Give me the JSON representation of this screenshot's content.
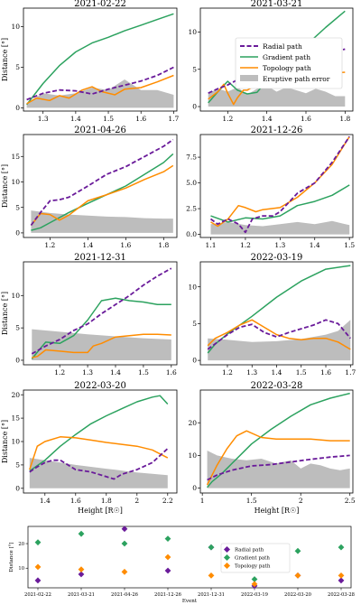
{
  "colors": {
    "radial": "#6a1b9a",
    "gradient": "#2ca25f",
    "topology": "#ff8c00",
    "error": "#bdbdbd"
  },
  "legend": [
    {
      "key": "radial",
      "label": "Radial path"
    },
    {
      "key": "gradient",
      "label": "Gradient path"
    },
    {
      "key": "topology",
      "label": "Topology path"
    },
    {
      "key": "error",
      "label": "Eruptive path error"
    }
  ],
  "bottom_legend": [
    {
      "key": "radial",
      "label": "Radial path"
    },
    {
      "key": "gradient",
      "label": "Gradient path"
    },
    {
      "key": "topology",
      "label": "Topology path"
    }
  ],
  "chart_data": [
    {
      "type": "line",
      "title": "2021-02-22",
      "xlabel": "",
      "ylabel": "Distance [°]",
      "xlim": [
        1.24,
        1.71
      ],
      "ylim": [
        -0.4,
        12.3
      ],
      "xticks": [
        1.3,
        1.4,
        1.5,
        1.6,
        1.7
      ],
      "yticks": [
        0,
        5,
        10
      ],
      "legend": false,
      "error": {
        "x": [
          1.25,
          1.3,
          1.35,
          1.4,
          1.45,
          1.5,
          1.55,
          1.6,
          1.65,
          1.7
        ],
        "y": [
          0.6,
          1.8,
          1.5,
          1.8,
          2.5,
          2.2,
          3.5,
          2.2,
          2.2,
          1.6
        ]
      },
      "radial": {
        "x": [
          1.25,
          1.3,
          1.35,
          1.4,
          1.45,
          1.5,
          1.55,
          1.6,
          1.65,
          1.7
        ],
        "y": [
          1.0,
          1.8,
          2.2,
          2.1,
          1.7,
          2.3,
          2.8,
          3.3,
          4.0,
          5.0
        ]
      },
      "gradient": {
        "x": [
          1.25,
          1.3,
          1.35,
          1.4,
          1.45,
          1.5,
          1.55,
          1.6,
          1.65,
          1.7
        ],
        "y": [
          0.4,
          3.0,
          5.2,
          6.9,
          8.0,
          8.7,
          9.5,
          10.2,
          10.9,
          11.6
        ]
      },
      "topology": {
        "x": [
          1.25,
          1.28,
          1.32,
          1.35,
          1.38,
          1.42,
          1.45,
          1.48,
          1.52,
          1.55,
          1.6,
          1.65,
          1.7
        ],
        "y": [
          0.5,
          1.2,
          0.9,
          1.5,
          1.2,
          2.2,
          2.6,
          2.0,
          1.6,
          2.3,
          2.5,
          3.2,
          4.0
        ]
      }
    },
    {
      "type": "line",
      "title": "2021-03-21",
      "xlabel": "",
      "ylabel": "",
      "xlim": [
        1.06,
        1.84
      ],
      "ylim": [
        -0.6,
        13.2
      ],
      "xticks": [
        1.2,
        1.4,
        1.6,
        1.8
      ],
      "yticks": [
        0,
        5,
        10
      ],
      "legend": true,
      "error": {
        "x": [
          1.1,
          1.15,
          1.2,
          1.25,
          1.3,
          1.35,
          1.4,
          1.45,
          1.5,
          1.55,
          1.6,
          1.65,
          1.7,
          1.75,
          1.8
        ],
        "y": [
          1.8,
          2.4,
          2.0,
          2.6,
          1.6,
          2.4,
          2.8,
          2.0,
          2.6,
          2.2,
          1.8,
          2.4,
          2.0,
          1.4,
          1.4
        ]
      },
      "radial": {
        "x": [
          1.1,
          1.15,
          1.2,
          1.25,
          1.3,
          1.35,
          1.4,
          1.5,
          1.6,
          1.7,
          1.8
        ],
        "y": [
          1.8,
          2.4,
          2.9,
          3.6,
          3.9,
          4.1,
          4.6,
          5.5,
          6.3,
          7.0,
          7.7
        ]
      },
      "gradient": {
        "x": [
          1.1,
          1.15,
          1.2,
          1.25,
          1.3,
          1.35,
          1.4,
          1.5,
          1.6,
          1.7,
          1.8
        ],
        "y": [
          0.5,
          2.0,
          3.4,
          2.2,
          1.7,
          1.9,
          3.5,
          5.8,
          8.2,
          10.6,
          12.8
        ]
      },
      "topology": {
        "x": [
          1.1,
          1.15,
          1.18,
          1.2,
          1.23,
          1.25,
          1.28,
          1.3,
          1.35,
          1.4,
          1.5,
          1.6,
          1.7,
          1.8
        ],
        "y": [
          1.0,
          2.0,
          3.0,
          1.8,
          0.3,
          1.2,
          2.2,
          2.2,
          3.0,
          5.0,
          4.5,
          4.4,
          4.4,
          4.6
        ]
      }
    },
    {
      "type": "line",
      "title": "2021-04-26",
      "xlabel": "",
      "ylabel": "Distance [°]",
      "xlim": [
        1.06,
        1.87
      ],
      "ylim": [
        -0.9,
        19.3
      ],
      "xticks": [
        1.2,
        1.4,
        1.6,
        1.8
      ],
      "yticks": [
        0,
        5,
        10,
        15
      ],
      "legend": false,
      "error": {
        "x": [
          1.1,
          1.2,
          1.3,
          1.4,
          1.5,
          1.6,
          1.7,
          1.8,
          1.85
        ],
        "y": [
          4.4,
          3.9,
          3.6,
          3.4,
          3.2,
          3.1,
          2.9,
          2.8,
          2.8
        ]
      },
      "radial": {
        "x": [
          1.1,
          1.15,
          1.2,
          1.25,
          1.3,
          1.4,
          1.5,
          1.6,
          1.7,
          1.8,
          1.85
        ],
        "y": [
          1.5,
          4.0,
          6.3,
          6.5,
          7.0,
          9.2,
          11.5,
          13.0,
          15.0,
          17.0,
          18.3
        ]
      },
      "gradient": {
        "x": [
          1.1,
          1.15,
          1.2,
          1.3,
          1.4,
          1.5,
          1.6,
          1.7,
          1.8,
          1.85
        ],
        "y": [
          0.5,
          1.0,
          2.0,
          4.0,
          5.8,
          7.5,
          9.2,
          11.5,
          13.8,
          15.5
        ]
      },
      "topology": {
        "x": [
          1.1,
          1.15,
          1.2,
          1.25,
          1.3,
          1.4,
          1.5,
          1.6,
          1.7,
          1.8,
          1.85
        ],
        "y": [
          1.5,
          3.8,
          3.6,
          2.5,
          3.5,
          6.3,
          7.5,
          8.8,
          10.5,
          12.0,
          13.2
        ]
      }
    },
    {
      "type": "line",
      "title": "2021-12-26",
      "xlabel": "",
      "ylabel": "",
      "xlim": [
        1.07,
        1.51
      ],
      "ylim": [
        -0.3,
        9.7
      ],
      "xticks": [
        1.1,
        1.2,
        1.3,
        1.4,
        1.5
      ],
      "yticks": [
        0.0,
        2.5,
        5.0,
        7.5
      ],
      "legend": false,
      "error": {
        "x": [
          1.1,
          1.15,
          1.2,
          1.25,
          1.3,
          1.35,
          1.4,
          1.45,
          1.5
        ],
        "y": [
          1.0,
          1.2,
          0.9,
          0.8,
          1.0,
          1.2,
          1.0,
          1.3,
          0.9
        ]
      },
      "radial": {
        "x": [
          1.1,
          1.12,
          1.15,
          1.18,
          1.2,
          1.22,
          1.25,
          1.28,
          1.3,
          1.35,
          1.4,
          1.45,
          1.5
        ],
        "y": [
          1.5,
          1.0,
          1.5,
          1.0,
          0.2,
          1.5,
          1.8,
          1.8,
          2.2,
          4.0,
          5.0,
          7.0,
          9.5
        ]
      },
      "gradient": {
        "x": [
          1.1,
          1.15,
          1.2,
          1.25,
          1.3,
          1.35,
          1.4,
          1.45,
          1.5
        ],
        "y": [
          1.8,
          1.2,
          1.6,
          1.5,
          1.8,
          2.8,
          3.2,
          3.8,
          4.8
        ]
      },
      "topology": {
        "x": [
          1.1,
          1.12,
          1.15,
          1.18,
          1.2,
          1.23,
          1.25,
          1.3,
          1.35,
          1.4,
          1.45,
          1.5
        ],
        "y": [
          1.2,
          0.8,
          1.5,
          2.8,
          2.6,
          2.2,
          2.4,
          2.6,
          3.6,
          5.0,
          6.8,
          9.5
        ]
      }
    },
    {
      "type": "line",
      "title": "2021-12-31",
      "xlabel": "",
      "ylabel": "Distance [°]",
      "xlim": [
        1.07,
        1.62
      ],
      "ylim": [
        -0.7,
        15.2
      ],
      "xticks": [
        1.2,
        1.3,
        1.4,
        1.5,
        1.6
      ],
      "yticks": [
        0,
        5,
        10
      ],
      "legend": false,
      "error": {
        "x": [
          1.1,
          1.2,
          1.3,
          1.4,
          1.5,
          1.6
        ],
        "y": [
          4.8,
          4.4,
          4.0,
          3.7,
          3.4,
          3.2
        ]
      },
      "radial": {
        "x": [
          1.1,
          1.15,
          1.2,
          1.25,
          1.3,
          1.35,
          1.4,
          1.45,
          1.5,
          1.55,
          1.6
        ],
        "y": [
          1.0,
          2.2,
          3.2,
          4.6,
          5.6,
          7.2,
          8.6,
          10.0,
          11.6,
          13.0,
          14.2
        ]
      },
      "gradient": {
        "x": [
          1.1,
          1.13,
          1.15,
          1.2,
          1.25,
          1.3,
          1.35,
          1.4,
          1.45,
          1.5,
          1.55,
          1.6
        ],
        "y": [
          0.2,
          1.8,
          2.8,
          2.6,
          3.8,
          6.2,
          9.2,
          9.6,
          9.2,
          9.0,
          8.6,
          8.6
        ]
      },
      "topology": {
        "x": [
          1.1,
          1.12,
          1.15,
          1.2,
          1.25,
          1.3,
          1.32,
          1.35,
          1.4,
          1.45,
          1.5,
          1.55,
          1.6
        ],
        "y": [
          0.4,
          0.6,
          1.6,
          1.4,
          1.2,
          1.2,
          2.2,
          2.6,
          3.6,
          3.8,
          4.0,
          4.0,
          3.9
        ]
      }
    },
    {
      "type": "line",
      "title": "2022-03-19",
      "xlabel": "",
      "ylabel": "",
      "xlim": [
        1.09,
        1.71
      ],
      "ylim": [
        -0.6,
        13.4
      ],
      "xticks": [
        1.2,
        1.3,
        1.4,
        1.5,
        1.6,
        1.7
      ],
      "yticks": [
        0,
        5,
        10
      ],
      "legend": false,
      "error": {
        "x": [
          1.12,
          1.2,
          1.3,
          1.4,
          1.5,
          1.6,
          1.65,
          1.7
        ],
        "y": [
          3.0,
          2.8,
          2.5,
          2.6,
          2.9,
          3.5,
          4.0,
          5.5
        ]
      },
      "radial": {
        "x": [
          1.12,
          1.2,
          1.25,
          1.3,
          1.35,
          1.4,
          1.45,
          1.5,
          1.55,
          1.6,
          1.65,
          1.7
        ],
        "y": [
          1.5,
          3.5,
          4.5,
          4.9,
          3.8,
          3.2,
          3.8,
          4.3,
          4.8,
          5.5,
          5.0,
          3.0
        ]
      },
      "gradient": {
        "x": [
          1.12,
          1.15,
          1.2,
          1.3,
          1.4,
          1.5,
          1.6,
          1.7
        ],
        "y": [
          1.0,
          2.2,
          3.6,
          6.0,
          8.6,
          10.8,
          12.4,
          12.9
        ]
      },
      "topology": {
        "x": [
          1.12,
          1.15,
          1.2,
          1.25,
          1.3,
          1.35,
          1.4,
          1.45,
          1.5,
          1.55,
          1.6,
          1.65,
          1.7
        ],
        "y": [
          2.0,
          3.0,
          3.8,
          4.8,
          5.5,
          4.5,
          3.5,
          3.0,
          2.8,
          3.0,
          3.0,
          2.5,
          1.5
        ]
      }
    },
    {
      "type": "line",
      "title": "2022-03-20",
      "xlabel": "Height [R☉]",
      "ylabel": "Distance [°]",
      "xlim": [
        1.26,
        2.26
      ],
      "ylim": [
        -1.0,
        21.0
      ],
      "xticks": [
        1.4,
        1.6,
        1.8,
        2.0,
        2.2
      ],
      "yticks": [
        0,
        5,
        10,
        15,
        20
      ],
      "legend": false,
      "error": {
        "x": [
          1.3,
          1.4,
          1.5,
          1.6,
          1.7,
          1.8,
          1.9,
          2.0,
          2.1,
          2.2
        ],
        "y": [
          6.5,
          6.0,
          5.5,
          5.0,
          4.6,
          4.2,
          3.8,
          3.4,
          3.1,
          2.8
        ]
      },
      "radial": {
        "x": [
          1.3,
          1.35,
          1.4,
          1.45,
          1.5,
          1.55,
          1.6,
          1.7,
          1.8,
          1.85,
          1.9,
          2.0,
          2.1,
          2.2
        ],
        "y": [
          3.5,
          4.6,
          5.5,
          6.0,
          6.0,
          5.0,
          4.0,
          3.5,
          2.5,
          2.0,
          3.0,
          4.0,
          5.5,
          8.5
        ]
      },
      "gradient": {
        "x": [
          1.3,
          1.4,
          1.5,
          1.6,
          1.7,
          1.8,
          1.9,
          2.0,
          2.1,
          2.15,
          2.2
        ],
        "y": [
          3.7,
          6.0,
          9.0,
          11.5,
          13.8,
          15.5,
          17.0,
          18.5,
          19.5,
          19.8,
          18.0
        ]
      },
      "topology": {
        "x": [
          1.3,
          1.35,
          1.4,
          1.5,
          1.6,
          1.7,
          1.8,
          1.9,
          2.0,
          2.1,
          2.2
        ],
        "y": [
          4.0,
          9.0,
          10.0,
          11.0,
          10.8,
          10.3,
          9.8,
          9.4,
          9.0,
          8.2,
          6.5
        ]
      }
    },
    {
      "type": "line",
      "title": "2022-03-28",
      "xlabel": "Height [R☉]",
      "ylabel": "",
      "xlim": [
        0.98,
        2.53
      ],
      "ylim": [
        -1.5,
        30.0
      ],
      "xticks": [
        1.0,
        1.5,
        2.0,
        2.5
      ],
      "yticks": [
        0,
        10,
        20
      ],
      "legend": false,
      "error": {
        "x": [
          1.05,
          1.15,
          1.3,
          1.45,
          1.6,
          1.75,
          1.9,
          2.0,
          2.1,
          2.2,
          2.3,
          2.4,
          2.5
        ],
        "y": [
          11.5,
          10.0,
          9.0,
          8.5,
          9.0,
          7.5,
          8.5,
          6.0,
          7.5,
          7.0,
          6.0,
          5.5,
          6.0
        ]
      },
      "radial": {
        "x": [
          1.05,
          1.15,
          1.3,
          1.5,
          1.7,
          1.9,
          2.1,
          2.3,
          2.5
        ],
        "y": [
          2.5,
          4.0,
          5.5,
          6.8,
          7.2,
          8.0,
          8.8,
          9.5,
          10.0
        ]
      },
      "gradient": {
        "x": [
          1.05,
          1.1,
          1.2,
          1.3,
          1.5,
          1.7,
          1.9,
          2.1,
          2.3,
          2.5
        ],
        "y": [
          0.2,
          2.0,
          4.5,
          7.5,
          13.5,
          18.0,
          22.0,
          25.5,
          27.5,
          29.0
        ]
      },
      "topology": {
        "x": [
          1.05,
          1.15,
          1.25,
          1.35,
          1.45,
          1.6,
          1.75,
          1.9,
          2.1,
          2.3,
          2.5
        ],
        "y": [
          1.0,
          7.0,
          12.0,
          16.0,
          17.5,
          15.5,
          15.0,
          15.0,
          15.0,
          14.5,
          14.5
        ]
      }
    },
    {
      "type": "scatter",
      "title": "",
      "xlabel": "Event",
      "ylabel": "Distance [°]",
      "categories": [
        "2021-02-22",
        "2021-03-21",
        "2021-04-26",
        "2021-12-26",
        "2021-12-31",
        "2022-03-19",
        "2022-03-20",
        "2022-03-28"
      ],
      "ylim": [
        2,
        27
      ],
      "yticks": [
        10,
        20
      ],
      "series": [
        {
          "name": "Radial path",
          "key": "radial",
          "values": [
            5,
            7.5,
            26,
            9,
            18.5,
            2.8,
            7,
            5
          ]
        },
        {
          "name": "Gradient path",
          "key": "gradient",
          "values": [
            20.5,
            24,
            20,
            22,
            18.5,
            5.5,
            17,
            18.5
          ]
        },
        {
          "name": "Topology path",
          "key": "topology",
          "values": [
            10.5,
            9.5,
            8.5,
            14.5,
            7,
            3.5,
            7,
            7
          ]
        }
      ]
    }
  ]
}
